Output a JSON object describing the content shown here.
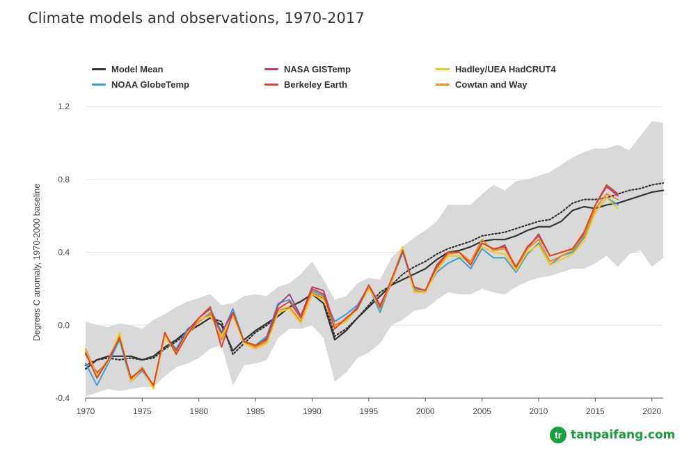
{
  "title": "Climate models and observations, 1970-2017",
  "watermark": {
    "text": "tanpaifang.com",
    "logo_letter": "tr"
  },
  "chart_data": {
    "type": "line",
    "title": "Climate models and observations, 1970-2017",
    "xlabel": "",
    "ylabel": "Degrees C anomaly, 1970-2000 baseline",
    "xlim": [
      1970,
      2021
    ],
    "ylim": [
      -0.4,
      1.2
    ],
    "yticks": [
      -0.4,
      0.0,
      0.4,
      0.8,
      1.2
    ],
    "ytick_labels": [
      "-0.4",
      "0.0",
      "0.4",
      "0.8",
      "1.2"
    ],
    "xticks": [
      1970,
      1975,
      1980,
      1985,
      1990,
      1995,
      2000,
      2005,
      2010,
      2015,
      2020
    ],
    "xtick_labels": [
      "1970",
      "1975",
      "1980",
      "1985",
      "1990",
      "1995",
      "2000",
      "2005",
      "2010",
      "2015",
      "2020"
    ],
    "grid": "horizontal",
    "legend_position": "top",
    "legend": [
      {
        "name": "Model Mean",
        "color": "#333333"
      },
      {
        "name": "NASA GISTemp",
        "color": "#a8437a"
      },
      {
        "name": "Hadley/UEA HadCRUT4",
        "color": "#f2c81f"
      },
      {
        "name": "NOAA GlobeTemp",
        "color": "#3a9fd8"
      },
      {
        "name": "Berkeley Earth",
        "color": "#d9472b"
      },
      {
        "name": "Cowtan and Way",
        "color": "#f08c1e"
      }
    ],
    "band": {
      "color": "#d9d9d9",
      "years": [
        1970,
        1971,
        1972,
        1973,
        1974,
        1975,
        1976,
        1977,
        1978,
        1979,
        1980,
        1981,
        1982,
        1983,
        1984,
        1985,
        1986,
        1987,
        1988,
        1989,
        1990,
        1991,
        1992,
        1993,
        1994,
        1995,
        1996,
        1997,
        1998,
        1999,
        2000,
        2001,
        2002,
        2003,
        2004,
        2005,
        2006,
        2007,
        2008,
        2009,
        2010,
        2011,
        2012,
        2013,
        2014,
        2015,
        2016,
        2017,
        2018,
        2019,
        2020,
        2021
      ],
      "upper": [
        0.02,
        0.0,
        -0.01,
        0.01,
        0.0,
        -0.02,
        0.03,
        0.06,
        0.1,
        0.13,
        0.15,
        0.17,
        0.11,
        0.12,
        0.16,
        0.17,
        0.16,
        0.21,
        0.23,
        0.28,
        0.35,
        0.25,
        0.14,
        0.16,
        0.23,
        0.26,
        0.25,
        0.37,
        0.43,
        0.48,
        0.52,
        0.57,
        0.66,
        0.66,
        0.66,
        0.72,
        0.77,
        0.74,
        0.79,
        0.8,
        0.82,
        0.84,
        0.88,
        0.92,
        0.95,
        0.97,
        0.97,
        0.99,
        0.96,
        1.04,
        1.12,
        1.11
      ],
      "lower": [
        -0.39,
        -0.37,
        -0.35,
        -0.36,
        -0.35,
        -0.34,
        -0.34,
        -0.28,
        -0.23,
        -0.21,
        -0.18,
        -0.13,
        -0.11,
        -0.33,
        -0.22,
        -0.21,
        -0.19,
        -0.07,
        -0.02,
        -0.02,
        0.0,
        -0.07,
        -0.31,
        -0.26,
        -0.18,
        -0.15,
        -0.1,
        0.0,
        0.03,
        0.08,
        0.09,
        0.14,
        0.18,
        0.17,
        0.17,
        0.2,
        0.18,
        0.17,
        0.21,
        0.24,
        0.26,
        0.27,
        0.29,
        0.31,
        0.31,
        0.34,
        0.38,
        0.32,
        0.39,
        0.41,
        0.32,
        0.37
      ]
    },
    "series": [
      {
        "name": "Model Mean",
        "color": "#333333",
        "width": 2.2,
        "x": [
          1970,
          1971,
          1972,
          1973,
          1974,
          1975,
          1976,
          1977,
          1978,
          1979,
          1980,
          1981,
          1982,
          1983,
          1984,
          1985,
          1986,
          1987,
          1988,
          1989,
          1990,
          1991,
          1992,
          1993,
          1994,
          1995,
          1996,
          1997,
          1998,
          1999,
          2000,
          2001,
          2002,
          2003,
          2004,
          2005,
          2006,
          2007,
          2008,
          2009,
          2010,
          2011,
          2012,
          2013,
          2014,
          2015,
          2016,
          2017,
          2018,
          2019,
          2020,
          2021
        ],
        "y": [
          -0.24,
          -0.19,
          -0.17,
          -0.17,
          -0.17,
          -0.19,
          -0.17,
          -0.12,
          -0.08,
          -0.03,
          0.0,
          0.04,
          0.0,
          -0.14,
          -0.08,
          -0.03,
          0.01,
          0.05,
          0.1,
          0.13,
          0.17,
          0.12,
          -0.08,
          -0.03,
          0.04,
          0.1,
          0.16,
          0.22,
          0.25,
          0.28,
          0.31,
          0.36,
          0.4,
          0.41,
          0.43,
          0.46,
          0.47,
          0.47,
          0.49,
          0.52,
          0.54,
          0.54,
          0.57,
          0.63,
          0.65,
          0.64,
          0.66,
          0.67,
          0.69,
          0.71,
          0.73,
          0.74
        ]
      },
      {
        "name": "Model Mean (dotted)",
        "color": "#333333",
        "width": 2.2,
        "dash": "2,3",
        "x": [
          1970,
          1971,
          1972,
          1973,
          1974,
          1975,
          1976,
          1977,
          1978,
          1979,
          1980,
          1981,
          1982,
          1983,
          1984,
          1985,
          1986,
          1987,
          1988,
          1989,
          1990,
          1991,
          1992,
          1993,
          1994,
          1995,
          1996,
          1997,
          1998,
          1999,
          2000,
          2001,
          2002,
          2003,
          2004,
          2005,
          2006,
          2007,
          2008,
          2009,
          2010,
          2011,
          2012,
          2013,
          2014,
          2015,
          2016,
          2017,
          2018,
          2019,
          2020,
          2021
        ],
        "y": [
          -0.22,
          -0.19,
          -0.18,
          -0.19,
          -0.18,
          -0.19,
          -0.18,
          -0.13,
          -0.09,
          -0.04,
          0.0,
          0.04,
          0.02,
          -0.16,
          -0.1,
          -0.04,
          0.0,
          0.05,
          0.1,
          0.13,
          0.17,
          0.15,
          -0.06,
          -0.02,
          0.04,
          0.11,
          0.18,
          0.22,
          0.28,
          0.32,
          0.35,
          0.39,
          0.42,
          0.44,
          0.46,
          0.49,
          0.5,
          0.51,
          0.53,
          0.55,
          0.57,
          0.58,
          0.62,
          0.67,
          0.69,
          0.69,
          0.7,
          0.72,
          0.74,
          0.75,
          0.77,
          0.78
        ]
      },
      {
        "name": "NOAA GlobeTemp",
        "color": "#3a9fd8",
        "width": 2,
        "x": [
          1970,
          1971,
          1972,
          1973,
          1974,
          1975,
          1976,
          1977,
          1978,
          1979,
          1980,
          1981,
          1982,
          1983,
          1984,
          1985,
          1986,
          1987,
          1988,
          1989,
          1990,
          1991,
          1992,
          1993,
          1994,
          1995,
          1996,
          1997,
          1998,
          1999,
          2000,
          2001,
          2002,
          2003,
          2004,
          2005,
          2006,
          2007,
          2008,
          2009,
          2010,
          2011,
          2012,
          2013,
          2014,
          2015,
          2016,
          2017
        ],
        "y": [
          -0.21,
          -0.33,
          -0.21,
          -0.08,
          -0.31,
          -0.25,
          -0.34,
          -0.06,
          -0.13,
          -0.02,
          0.02,
          0.06,
          -0.05,
          0.09,
          -0.09,
          -0.11,
          -0.06,
          0.12,
          0.14,
          0.05,
          0.19,
          0.16,
          0.02,
          0.06,
          0.11,
          0.21,
          0.07,
          0.24,
          0.4,
          0.2,
          0.19,
          0.29,
          0.34,
          0.37,
          0.31,
          0.42,
          0.37,
          0.37,
          0.29,
          0.39,
          0.45,
          0.33,
          0.38,
          0.4,
          0.48,
          0.62,
          0.7,
          0.66
        ]
      },
      {
        "name": "NASA GISTemp",
        "color": "#a8437a",
        "width": 2,
        "x": [
          1970,
          1971,
          1972,
          1973,
          1974,
          1975,
          1976,
          1977,
          1978,
          1979,
          1980,
          1981,
          1982,
          1983,
          1984,
          1985,
          1986,
          1987,
          1988,
          1989,
          1990,
          1991,
          1992,
          1993,
          1994,
          1995,
          1996,
          1997,
          1998,
          1999,
          2000,
          2001,
          2002,
          2003,
          2004,
          2005,
          2006,
          2007,
          2008,
          2009,
          2010,
          2011,
          2012,
          2013,
          2014,
          2015,
          2016,
          2017
        ],
        "y": [
          -0.16,
          -0.26,
          -0.2,
          -0.06,
          -0.29,
          -0.24,
          -0.33,
          -0.05,
          -0.14,
          -0.03,
          0.04,
          0.09,
          -0.04,
          0.07,
          -0.09,
          -0.12,
          -0.07,
          0.11,
          0.17,
          0.05,
          0.21,
          0.19,
          0.0,
          0.03,
          0.1,
          0.22,
          0.11,
          0.24,
          0.41,
          0.21,
          0.19,
          0.33,
          0.4,
          0.4,
          0.34,
          0.47,
          0.41,
          0.44,
          0.31,
          0.42,
          0.5,
          0.38,
          0.4,
          0.42,
          0.5,
          0.66,
          0.76,
          0.71
        ]
      },
      {
        "name": "Cowtan and Way",
        "color": "#f08c1e",
        "width": 2,
        "x": [
          1970,
          1971,
          1972,
          1973,
          1974,
          1975,
          1976,
          1977,
          1978,
          1979,
          1980,
          1981,
          1982,
          1983,
          1984,
          1985,
          1986,
          1987,
          1988,
          1989,
          1990,
          1991,
          1992,
          1993,
          1994,
          1995,
          1996,
          1997,
          1998,
          1999,
          2000,
          2001,
          2002,
          2003,
          2004,
          2005,
          2006,
          2007,
          2008,
          2009,
          2010,
          2011,
          2012,
          2013,
          2014,
          2015,
          2016,
          2017
        ],
        "y": [
          -0.13,
          -0.27,
          -0.19,
          -0.05,
          -0.3,
          -0.23,
          -0.34,
          -0.05,
          -0.15,
          -0.05,
          0.02,
          0.07,
          -0.08,
          0.06,
          -0.09,
          -0.12,
          -0.09,
          0.08,
          0.1,
          0.02,
          0.18,
          0.15,
          0.0,
          0.03,
          0.09,
          0.21,
          0.09,
          0.23,
          0.42,
          0.19,
          0.18,
          0.31,
          0.39,
          0.4,
          0.35,
          0.47,
          0.41,
          0.42,
          0.31,
          0.42,
          0.47,
          0.35,
          0.38,
          0.41,
          0.49,
          0.64,
          0.72,
          0.69
        ]
      },
      {
        "name": "Hadley/UEA HadCRUT4",
        "color": "#f2c81f",
        "width": 2,
        "x": [
          1970,
          1971,
          1972,
          1973,
          1974,
          1975,
          1976,
          1977,
          1978,
          1979,
          1980,
          1981,
          1982,
          1983,
          1984,
          1985,
          1986,
          1987,
          1988,
          1989,
          1990,
          1991,
          1992,
          1993,
          1994,
          1995,
          1996,
          1997,
          1998,
          1999,
          2000,
          2001,
          2002,
          2003,
          2004,
          2005,
          2006,
          2007,
          2008,
          2009,
          2010,
          2011,
          2012,
          2013,
          2014,
          2015,
          2016,
          2017
        ],
        "y": [
          -0.14,
          -0.28,
          -0.2,
          -0.04,
          -0.31,
          -0.24,
          -0.35,
          -0.06,
          -0.16,
          -0.04,
          0.03,
          0.05,
          -0.06,
          0.05,
          -0.1,
          -0.13,
          -0.1,
          0.07,
          0.09,
          0.01,
          0.17,
          0.14,
          -0.01,
          0.02,
          0.09,
          0.2,
          0.1,
          0.24,
          0.43,
          0.18,
          0.18,
          0.3,
          0.38,
          0.38,
          0.34,
          0.43,
          0.4,
          0.39,
          0.3,
          0.4,
          0.44,
          0.33,
          0.36,
          0.39,
          0.46,
          0.62,
          0.7,
          0.64
        ]
      },
      {
        "name": "Berkeley Earth",
        "color": "#d9472b",
        "width": 2,
        "x": [
          1970,
          1971,
          1972,
          1973,
          1974,
          1975,
          1976,
          1977,
          1978,
          1979,
          1980,
          1981,
          1982,
          1983,
          1984,
          1985,
          1986,
          1987,
          1988,
          1989,
          1990,
          1991,
          1992,
          1993,
          1994,
          1995,
          1996,
          1997,
          1998,
          1999,
          2000,
          2001,
          2002,
          2003,
          2004,
          2005,
          2006,
          2007,
          2008,
          2009,
          2010,
          2011,
          2012,
          2013,
          2014,
          2015,
          2016,
          2017
        ],
        "y": [
          -0.15,
          -0.29,
          -0.19,
          -0.07,
          -0.29,
          -0.24,
          -0.33,
          -0.04,
          -0.16,
          -0.05,
          0.04,
          0.1,
          -0.12,
          0.07,
          -0.09,
          -0.11,
          -0.08,
          0.09,
          0.13,
          0.04,
          0.2,
          0.17,
          -0.02,
          0.04,
          0.09,
          0.22,
          0.1,
          0.25,
          0.41,
          0.21,
          0.19,
          0.32,
          0.4,
          0.4,
          0.33,
          0.45,
          0.42,
          0.43,
          0.32,
          0.43,
          0.49,
          0.38,
          0.4,
          0.42,
          0.51,
          0.66,
          0.77,
          0.72
        ]
      }
    ]
  }
}
